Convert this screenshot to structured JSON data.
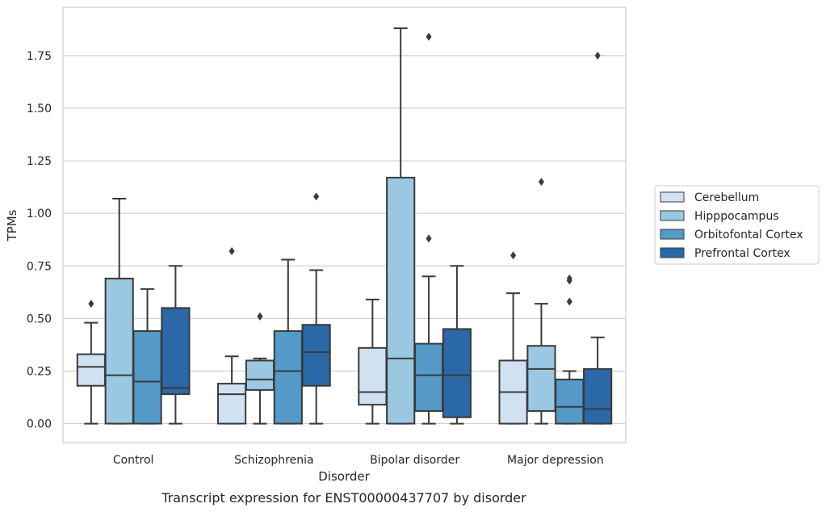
{
  "chart_data": {
    "type": "box",
    "title": "",
    "caption": "Transcript expression for ENST00000437707 by disorder",
    "xlabel": "Disorder",
    "ylabel": "TPMs",
    "ylim": [
      -0.09,
      1.98
    ],
    "yticks": [
      "0.00",
      "0.25",
      "0.50",
      "0.75",
      "1.00",
      "1.25",
      "1.50",
      "1.75"
    ],
    "grid": true,
    "legend_position": "right",
    "categories": [
      "Control",
      "Schizophrenia",
      "Bipolar disorder",
      "Major depression"
    ],
    "series": [
      {
        "name": "Cerebellum",
        "color": "#d0e1f2",
        "boxes": [
          {
            "whisker_low": 0.0,
            "q1": 0.18,
            "median": 0.27,
            "q3": 0.33,
            "whisker_high": 0.48,
            "outliers": [
              0.57
            ]
          },
          {
            "whisker_low": 0.0,
            "q1": 0.0,
            "median": 0.14,
            "q3": 0.19,
            "whisker_high": 0.32,
            "outliers": [
              0.82
            ]
          },
          {
            "whisker_low": 0.0,
            "q1": 0.09,
            "median": 0.15,
            "q3": 0.36,
            "whisker_high": 0.59,
            "outliers": []
          },
          {
            "whisker_low": 0.0,
            "q1": 0.0,
            "median": 0.15,
            "q3": 0.3,
            "whisker_high": 0.62,
            "outliers": [
              0.8
            ]
          }
        ]
      },
      {
        "name": "Hipppocampus",
        "color": "#9ac8e0",
        "boxes": [
          {
            "whisker_low": 0.0,
            "q1": 0.0,
            "median": 0.23,
            "q3": 0.69,
            "whisker_high": 1.07,
            "outliers": []
          },
          {
            "whisker_low": 0.0,
            "q1": 0.16,
            "median": 0.21,
            "q3": 0.3,
            "whisker_high": 0.31,
            "outliers": [
              0.51,
              0.51
            ]
          },
          {
            "whisker_low": 0.0,
            "q1": 0.0,
            "median": 0.31,
            "q3": 1.17,
            "whisker_high": 1.88,
            "outliers": []
          },
          {
            "whisker_low": 0.0,
            "q1": 0.06,
            "median": 0.26,
            "q3": 0.37,
            "whisker_high": 0.57,
            "outliers": [
              1.15
            ]
          }
        ]
      },
      {
        "name": "Orbitofontal Cortex",
        "color": "#5499c7",
        "boxes": [
          {
            "whisker_low": 0.0,
            "q1": 0.0,
            "median": 0.2,
            "q3": 0.44,
            "whisker_high": 0.64,
            "outliers": []
          },
          {
            "whisker_low": 0.0,
            "q1": 0.0,
            "median": 0.25,
            "q3": 0.44,
            "whisker_high": 0.78,
            "outliers": []
          },
          {
            "whisker_low": 0.0,
            "q1": 0.06,
            "median": 0.23,
            "q3": 0.38,
            "whisker_high": 0.7,
            "outliers": [
              0.88,
              1.84
            ]
          },
          {
            "whisker_low": 0.0,
            "q1": 0.0,
            "median": 0.08,
            "q3": 0.21,
            "whisker_high": 0.25,
            "outliers": [
              0.58,
              0.68,
              0.69
            ]
          }
        ]
      },
      {
        "name": "Prefrontal Cortex",
        "color": "#2a68a8",
        "boxes": [
          {
            "whisker_low": 0.0,
            "q1": 0.14,
            "median": 0.17,
            "q3": 0.55,
            "whisker_high": 0.75,
            "outliers": []
          },
          {
            "whisker_low": 0.0,
            "q1": 0.18,
            "median": 0.34,
            "q3": 0.47,
            "whisker_high": 0.73,
            "outliers": [
              1.08
            ]
          },
          {
            "whisker_low": 0.0,
            "q1": 0.03,
            "median": 0.23,
            "q3": 0.45,
            "whisker_high": 0.75,
            "outliers": []
          },
          {
            "whisker_low": 0.0,
            "q1": 0.0,
            "median": 0.07,
            "q3": 0.26,
            "whisker_high": 0.41,
            "outliers": [
              1.75
            ]
          }
        ]
      }
    ]
  }
}
